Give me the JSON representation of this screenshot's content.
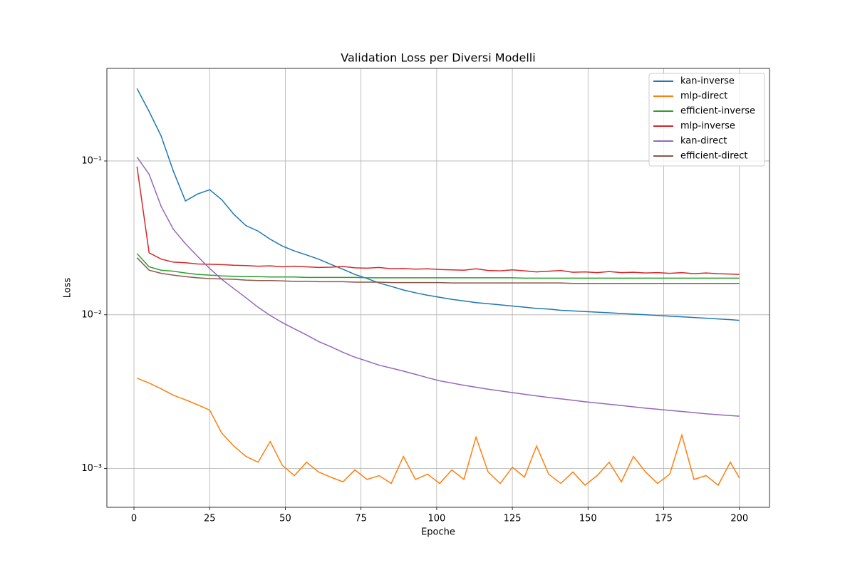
{
  "chart_data": {
    "type": "line",
    "title": "Validation Loss per Diversi Modelli",
    "x_label": "Epoche",
    "y_label": "Loss",
    "y_scale": "log",
    "grid": true,
    "legend_position": "upper right",
    "xlim": [
      -8.95,
      209.95
    ],
    "xticks": [
      0,
      25,
      50,
      75,
      100,
      125,
      150,
      175,
      200
    ],
    "ylim": [
      0.00056,
      0.4
    ],
    "yticks": [
      {
        "value": 0.001,
        "label": "10⁻³"
      },
      {
        "value": 0.01,
        "label": "10⁻²"
      },
      {
        "value": 0.1,
        "label": "10⁻¹"
      }
    ],
    "x": [
      1,
      5,
      9,
      13,
      17,
      21,
      25,
      29,
      33,
      37,
      41,
      45,
      49,
      53,
      57,
      61,
      65,
      69,
      73,
      77,
      81,
      85,
      89,
      93,
      97,
      101,
      105,
      109,
      113,
      117,
      121,
      125,
      129,
      133,
      137,
      141,
      145,
      149,
      153,
      157,
      161,
      165,
      169,
      173,
      177,
      181,
      185,
      189,
      193,
      197,
      200
    ],
    "series": [
      {
        "name": "kan-inverse",
        "color": "#1f77b4",
        "values": [
          0.296,
          0.21,
          0.145,
          0.086,
          0.055,
          0.061,
          0.065,
          0.056,
          0.045,
          0.038,
          0.035,
          0.031,
          0.028,
          0.026,
          0.0245,
          0.023,
          0.0213,
          0.0198,
          0.0183,
          0.0172,
          0.0161,
          0.0153,
          0.0145,
          0.0139,
          0.0134,
          0.013,
          0.0126,
          0.0123,
          0.012,
          0.0118,
          0.0116,
          0.0114,
          0.0112,
          0.011,
          0.0109,
          0.0107,
          0.0106,
          0.0105,
          0.0104,
          0.0103,
          0.0102,
          0.0101,
          0.01,
          0.0099,
          0.0098,
          0.0097,
          0.0096,
          0.0095,
          0.0094,
          0.0093,
          0.0092
        ]
      },
      {
        "name": "mlp-direct",
        "color": "#ff7f0e",
        "values": [
          0.00387,
          0.0036,
          0.0033,
          0.003,
          0.0028,
          0.0026,
          0.0024,
          0.0017,
          0.0014,
          0.0012,
          0.0011,
          0.0015,
          0.00105,
          0.0009,
          0.0011,
          0.00095,
          0.00088,
          0.00082,
          0.00098,
          0.00085,
          0.0009,
          0.0008,
          0.0012,
          0.00085,
          0.00092,
          0.0008,
          0.00098,
          0.00085,
          0.0016,
          0.00095,
          0.0008,
          0.00102,
          0.00088,
          0.0014,
          0.00092,
          0.0008,
          0.00095,
          0.00078,
          0.0009,
          0.0011,
          0.00082,
          0.0012,
          0.00095,
          0.0008,
          0.00092,
          0.00165,
          0.00085,
          0.0009,
          0.00078,
          0.0011,
          0.00087
        ]
      },
      {
        "name": "efficient-inverse",
        "color": "#2ca02c",
        "values": [
          0.025,
          0.0205,
          0.0195,
          0.0192,
          0.0187,
          0.0183,
          0.0181,
          0.0179,
          0.0178,
          0.0177,
          0.0177,
          0.0176,
          0.0176,
          0.0176,
          0.0175,
          0.0175,
          0.0175,
          0.0175,
          0.0175,
          0.0174,
          0.0174,
          0.0174,
          0.0174,
          0.0174,
          0.0174,
          0.0174,
          0.0174,
          0.0174,
          0.0174,
          0.0174,
          0.0174,
          0.0174,
          0.0173,
          0.0173,
          0.0173,
          0.0173,
          0.0173,
          0.0173,
          0.0173,
          0.0173,
          0.0173,
          0.0173,
          0.0173,
          0.0173,
          0.0173,
          0.0173,
          0.0173,
          0.0173,
          0.0173,
          0.0173,
          0.0173
        ]
      },
      {
        "name": "mlp-inverse",
        "color": "#d62728",
        "values": [
          0.092,
          0.0253,
          0.023,
          0.022,
          0.0218,
          0.0214,
          0.0213,
          0.0212,
          0.021,
          0.0209,
          0.0207,
          0.0208,
          0.0205,
          0.0207,
          0.0205,
          0.0203,
          0.0204,
          0.0206,
          0.0202,
          0.0201,
          0.0203,
          0.0199,
          0.02,
          0.0198,
          0.0199,
          0.0197,
          0.0196,
          0.0195,
          0.0199,
          0.0194,
          0.0193,
          0.0196,
          0.0193,
          0.019,
          0.0192,
          0.0194,
          0.0189,
          0.019,
          0.0188,
          0.0191,
          0.0188,
          0.0189,
          0.0187,
          0.0188,
          0.0186,
          0.0188,
          0.0185,
          0.0187,
          0.0185,
          0.0184,
          0.0183
        ]
      },
      {
        "name": "kan-direct",
        "color": "#9467bd",
        "values": [
          0.106,
          0.082,
          0.0505,
          0.036,
          0.029,
          0.024,
          0.02,
          0.017,
          0.0148,
          0.0129,
          0.0112,
          0.0099,
          0.0089,
          0.0081,
          0.0074,
          0.0067,
          0.0062,
          0.0057,
          0.0053,
          0.005,
          0.0047,
          0.0045,
          0.0043,
          0.0041,
          0.0039,
          0.00372,
          0.0036,
          0.00348,
          0.00338,
          0.00328,
          0.0032,
          0.00312,
          0.00304,
          0.00297,
          0.0029,
          0.00284,
          0.00278,
          0.00272,
          0.00267,
          0.00262,
          0.00257,
          0.00252,
          0.00247,
          0.00243,
          0.00239,
          0.00235,
          0.00231,
          0.00227,
          0.00224,
          0.00221,
          0.00219
        ]
      },
      {
        "name": "efficient-direct",
        "color": "#8c564b",
        "values": [
          0.0235,
          0.0195,
          0.0186,
          0.0181,
          0.0177,
          0.0174,
          0.0172,
          0.0171,
          0.017,
          0.0168,
          0.0167,
          0.0167,
          0.0166,
          0.0165,
          0.0165,
          0.0164,
          0.0164,
          0.0164,
          0.0163,
          0.0163,
          0.0163,
          0.0162,
          0.0162,
          0.0162,
          0.0162,
          0.0162,
          0.0161,
          0.0161,
          0.0161,
          0.0161,
          0.0161,
          0.0161,
          0.0161,
          0.0161,
          0.0161,
          0.0161,
          0.016,
          0.016,
          0.016,
          0.016,
          0.016,
          0.016,
          0.016,
          0.016,
          0.016,
          0.016,
          0.016,
          0.016,
          0.016,
          0.016,
          0.016
        ]
      }
    ]
  }
}
